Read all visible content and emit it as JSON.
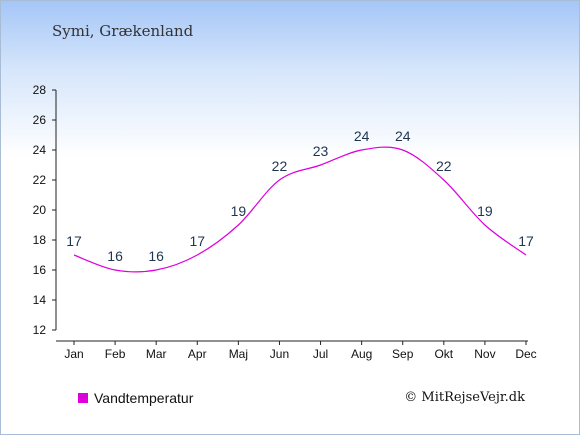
{
  "header": {
    "title": "Symi, Grækenland"
  },
  "legend": {
    "label": "Vandtemperatur",
    "color": "#dd00dd"
  },
  "credit": {
    "text": "© MitRejseVejr.dk"
  },
  "chart_data": {
    "type": "line",
    "title": "Symi, Grækenland",
    "xlabel": "",
    "ylabel": "",
    "categories": [
      "Jan",
      "Feb",
      "Mar",
      "Apr",
      "Maj",
      "Jun",
      "Jul",
      "Aug",
      "Sep",
      "Okt",
      "Nov",
      "Dec"
    ],
    "series": [
      {
        "name": "Vandtemperatur",
        "values": [
          17,
          16,
          16,
          17,
          19,
          22,
          23,
          24,
          24,
          22,
          19,
          17
        ],
        "color": "#dd00dd"
      }
    ],
    "ylim": [
      12,
      28
    ],
    "yticks": [
      12,
      14,
      16,
      18,
      20,
      22,
      24,
      26,
      28
    ],
    "grid": false,
    "legend_position": "bottom-left"
  }
}
